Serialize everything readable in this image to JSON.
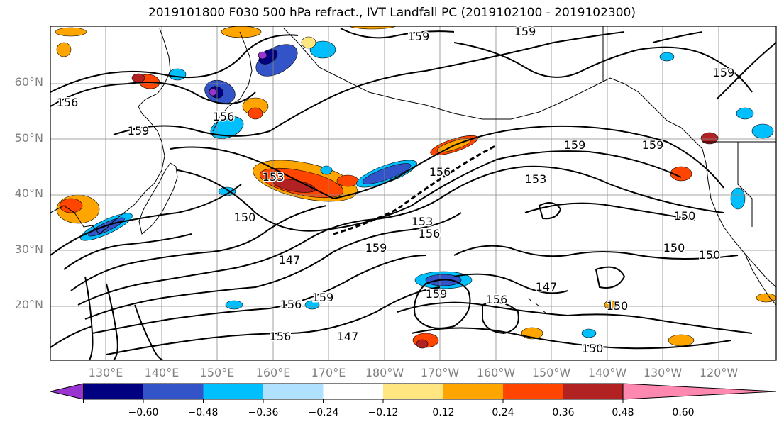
{
  "title": "2019101800 F030 500 hPa refract., IVT Landfall PC (2019102100 - 2019102300)",
  "lat_labels": [
    "60°N",
    "50°N",
    "40°N",
    "30°N",
    "20°N"
  ],
  "lon_labels": [
    "130°E",
    "140°E",
    "150°E",
    "160°E",
    "170°E",
    "180°W",
    "170°W",
    "160°W",
    "150°W",
    "140°W",
    "130°W",
    "120°W"
  ],
  "contour_labels": [
    "159",
    "159",
    "156",
    "159",
    "156",
    "153",
    "156",
    "150",
    "153",
    "156",
    "159",
    "159",
    "153",
    "159",
    "150",
    "150",
    "150",
    "147",
    "147",
    "156",
    "159",
    "156",
    "147",
    "159",
    "150",
    "156",
    "150",
    "159"
  ],
  "colorbar": {
    "tick_labels": [
      "−0.60",
      "−0.48",
      "−0.36",
      "−0.24",
      "−0.12",
      "0.12",
      "0.24",
      "0.36",
      "0.48",
      "0.60"
    ],
    "colors": [
      "#9a34d0",
      "#000080",
      "#3353c8",
      "#00bfff",
      "#b0e2ff",
      "#ffffff",
      "#ffe680",
      "#ffa500",
      "#ff4500",
      "#b22222",
      "#ff88b0"
    ]
  },
  "colors": {
    "contour": "#000000",
    "grid": "#888888",
    "coast": "#000000",
    "axis_label": "#808080"
  }
}
